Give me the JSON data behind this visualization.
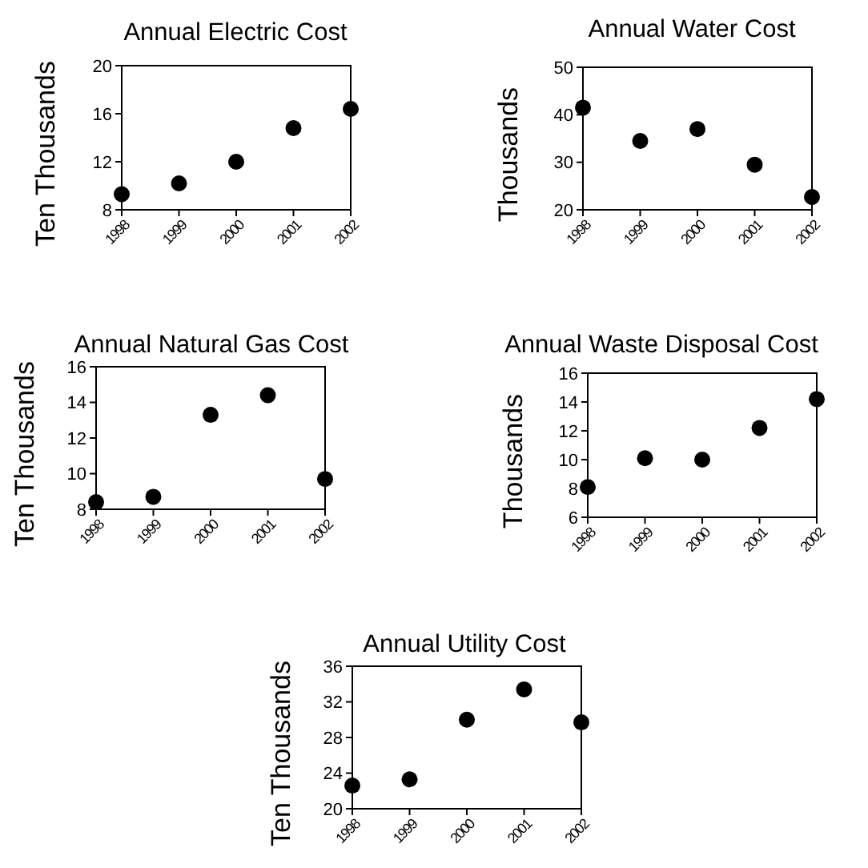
{
  "chart_data": [
    {
      "type": "scatter",
      "title": "Annual Electric Cost",
      "ylabel": "Ten Thousands",
      "categories": [
        "1998",
        "1999",
        "2000",
        "2001",
        "2002"
      ],
      "values": [
        9.3,
        10.2,
        12.0,
        14.8,
        16.4
      ],
      "color": "#000000",
      "ylim": [
        8,
        20
      ],
      "yticks": [
        8,
        12,
        16,
        20
      ],
      "marker": "circle",
      "grid": false,
      "legend": false
    },
    {
      "type": "scatter",
      "title": "Annual Water Cost",
      "ylabel": "Thousands",
      "categories": [
        "1998",
        "1999",
        "2000",
        "2001",
        "2002"
      ],
      "values": [
        41.5,
        34.5,
        37,
        29.5,
        22.7
      ],
      "color": "#000000",
      "ylim": [
        20,
        50
      ],
      "yticks": [
        20,
        30,
        40,
        50
      ],
      "marker": "circle",
      "grid": false,
      "legend": false
    },
    {
      "type": "scatter",
      "title": "Annual Natural Gas Cost",
      "ylabel": "Ten Thousands",
      "categories": [
        "1998",
        "1999",
        "2000",
        "2001",
        "2002"
      ],
      "values": [
        8.4,
        8.7,
        13.3,
        14.4,
        9.7
      ],
      "color": "#000000",
      "ylim": [
        8,
        16
      ],
      "yticks": [
        8,
        10,
        12,
        14,
        16
      ],
      "marker": "circle",
      "grid": false,
      "legend": false
    },
    {
      "type": "scatter",
      "title": "Annual Waste Disposal Cost",
      "ylabel": "Thousands",
      "categories": [
        "1998",
        "1999",
        "2000",
        "2001",
        "2002"
      ],
      "values": [
        8.1,
        10.1,
        10.0,
        12.2,
        14.2
      ],
      "color": "#000000",
      "ylim": [
        6,
        16
      ],
      "yticks": [
        6,
        8,
        10,
        12,
        14,
        16
      ],
      "marker": "circle",
      "grid": false,
      "legend": false
    },
    {
      "type": "scatter",
      "title": "Annual Utility Cost",
      "ylabel": "Ten Thousands",
      "categories": [
        "1998",
        "1999",
        "2000",
        "2001",
        "2002"
      ],
      "values": [
        22.6,
        23.3,
        30.0,
        33.4,
        29.7
      ],
      "color": "#000000",
      "ylim": [
        20,
        36
      ],
      "yticks": [
        20,
        24,
        28,
        32,
        36
      ],
      "marker": "circle",
      "grid": false,
      "legend": false
    }
  ]
}
